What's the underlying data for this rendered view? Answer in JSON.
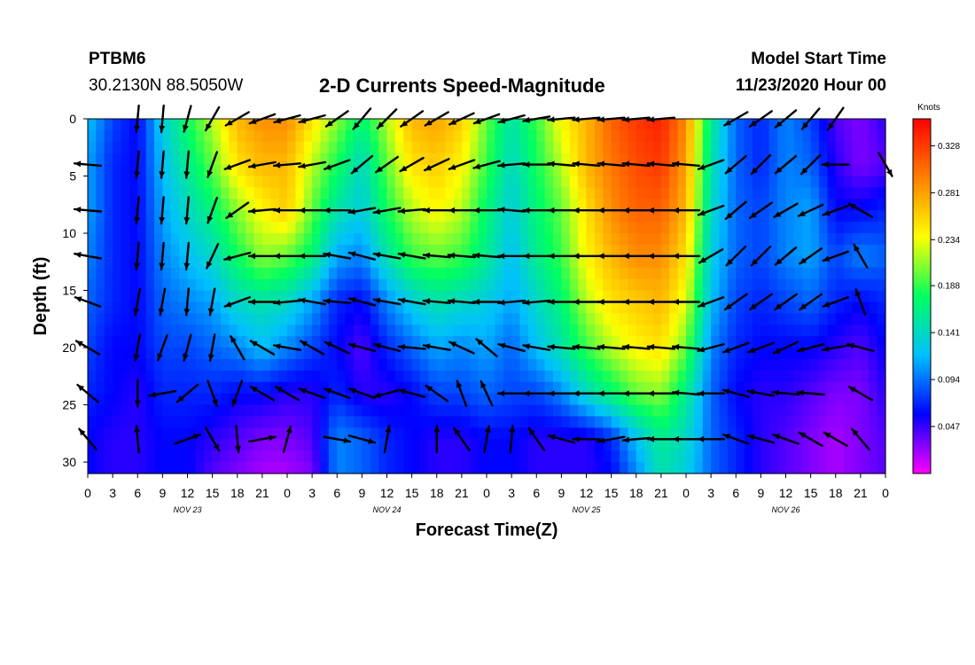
{
  "header": {
    "station": "PTBM6",
    "coords": "30.2130N 88.5050W",
    "title": "2-D Currents Speed-Magnitude",
    "model_start_label": "Model Start Time",
    "model_start_value": "11/23/2020 Hour 00"
  },
  "chart_data": {
    "type": "heatmap",
    "title": "2-D Currents Speed-Magnitude",
    "xlabel": "Forecast Time(Z)",
    "ylabel": "Depth (ft)",
    "x_tick_labels": [
      "0",
      "3",
      "6",
      "9",
      "12",
      "15",
      "18",
      "21",
      "0",
      "3",
      "6",
      "9",
      "12",
      "15",
      "18",
      "21",
      "0",
      "3",
      "6",
      "9",
      "12",
      "15",
      "18",
      "21",
      "0",
      "3",
      "6",
      "9",
      "12",
      "15",
      "18",
      "21",
      "0"
    ],
    "x_range_hours": [
      0,
      96
    ],
    "date_labels": [
      {
        "hour": 12,
        "text": "NOV 23"
      },
      {
        "hour": 36,
        "text": "NOV 24"
      },
      {
        "hour": 60,
        "text": "NOV 25"
      },
      {
        "hour": 84,
        "text": "NOV 26"
      }
    ],
    "y_ticks": [
      0,
      5,
      10,
      15,
      20,
      25,
      30
    ],
    "ylim": [
      31,
      0
    ],
    "colorbar": {
      "unit": "Knots",
      "ticks": [
        0.047,
        0.094,
        0.141,
        0.188,
        0.234,
        0.281,
        0.328
      ],
      "range": [
        0.0,
        0.355
      ],
      "colors": [
        "#ff00ff",
        "#0000ff",
        "#00c0ff",
        "#00ff60",
        "#ffff00",
        "#ff8000",
        "#ff0000"
      ]
    },
    "speed_grid_note": "rows = depth levels (ft), cols = forecast hours; values in knots",
    "depths": [
      0,
      4,
      8,
      12,
      16,
      20,
      24,
      28,
      31
    ],
    "hours": [
      0,
      3,
      6,
      9,
      12,
      15,
      18,
      21,
      24,
      27,
      30,
      33,
      36,
      39,
      42,
      45,
      48,
      51,
      54,
      57,
      60,
      63,
      66,
      69,
      72,
      75,
      78,
      81,
      84,
      87,
      90,
      93,
      96
    ],
    "speed": [
      [
        0.12,
        0.08,
        0.06,
        0.13,
        0.18,
        0.22,
        0.27,
        0.29,
        0.29,
        0.25,
        0.21,
        0.17,
        0.22,
        0.27,
        0.28,
        0.26,
        0.2,
        0.15,
        0.19,
        0.24,
        0.27,
        0.31,
        0.33,
        0.34,
        0.29,
        0.16,
        0.09,
        0.07,
        0.1,
        0.08,
        0.04,
        0.03,
        0.05
      ],
      [
        0.11,
        0.07,
        0.06,
        0.12,
        0.16,
        0.2,
        0.25,
        0.27,
        0.27,
        0.22,
        0.18,
        0.14,
        0.2,
        0.25,
        0.26,
        0.24,
        0.19,
        0.14,
        0.18,
        0.22,
        0.27,
        0.3,
        0.32,
        0.33,
        0.28,
        0.15,
        0.09,
        0.07,
        0.1,
        0.09,
        0.05,
        0.03,
        0.04
      ],
      [
        0.11,
        0.07,
        0.06,
        0.11,
        0.14,
        0.17,
        0.21,
        0.24,
        0.26,
        0.2,
        0.15,
        0.13,
        0.18,
        0.22,
        0.24,
        0.22,
        0.17,
        0.13,
        0.17,
        0.2,
        0.25,
        0.29,
        0.31,
        0.31,
        0.27,
        0.14,
        0.09,
        0.08,
        0.1,
        0.11,
        0.06,
        0.06,
        0.07
      ],
      [
        0.1,
        0.07,
        0.06,
        0.1,
        0.12,
        0.14,
        0.18,
        0.21,
        0.2,
        0.17,
        0.11,
        0.1,
        0.15,
        0.19,
        0.2,
        0.19,
        0.16,
        0.12,
        0.16,
        0.19,
        0.24,
        0.27,
        0.29,
        0.29,
        0.25,
        0.13,
        0.09,
        0.08,
        0.1,
        0.11,
        0.08,
        0.1,
        0.09
      ],
      [
        0.09,
        0.07,
        0.06,
        0.09,
        0.1,
        0.11,
        0.14,
        0.15,
        0.14,
        0.11,
        0.07,
        0.06,
        0.1,
        0.13,
        0.15,
        0.14,
        0.13,
        0.11,
        0.14,
        0.17,
        0.22,
        0.25,
        0.26,
        0.27,
        0.23,
        0.12,
        0.08,
        0.07,
        0.08,
        0.09,
        0.07,
        0.06,
        0.07
      ],
      [
        0.08,
        0.06,
        0.06,
        0.08,
        0.08,
        0.09,
        0.1,
        0.12,
        0.1,
        0.08,
        0.06,
        0.04,
        0.07,
        0.09,
        0.11,
        0.1,
        0.11,
        0.09,
        0.12,
        0.15,
        0.19,
        0.22,
        0.24,
        0.25,
        0.2,
        0.1,
        0.07,
        0.06,
        0.06,
        0.06,
        0.05,
        0.04,
        0.06
      ],
      [
        0.07,
        0.06,
        0.05,
        0.07,
        0.07,
        0.07,
        0.06,
        0.06,
        0.05,
        0.05,
        0.07,
        0.05,
        0.05,
        0.06,
        0.08,
        0.08,
        0.09,
        0.08,
        0.08,
        0.1,
        0.14,
        0.17,
        0.2,
        0.21,
        0.16,
        0.09,
        0.06,
        0.05,
        0.05,
        0.04,
        0.03,
        0.03,
        0.05
      ],
      [
        0.06,
        0.05,
        0.05,
        0.06,
        0.06,
        0.05,
        0.04,
        0.03,
        0.03,
        0.04,
        0.1,
        0.09,
        0.07,
        0.06,
        0.05,
        0.05,
        0.06,
        0.06,
        0.05,
        0.05,
        0.05,
        0.07,
        0.12,
        0.16,
        0.14,
        0.09,
        0.07,
        0.05,
        0.04,
        0.03,
        0.02,
        0.03,
        0.04
      ],
      [
        0.06,
        0.05,
        0.05,
        0.06,
        0.06,
        0.04,
        0.03,
        0.02,
        0.02,
        0.03,
        0.1,
        0.09,
        0.07,
        0.06,
        0.05,
        0.05,
        0.06,
        0.06,
        0.05,
        0.05,
        0.05,
        0.06,
        0.1,
        0.15,
        0.13,
        0.09,
        0.07,
        0.05,
        0.04,
        0.03,
        0.02,
        0.03,
        0.04
      ]
    ],
    "vector_note": "arrows show current direction; angle in degrees (0 = toward east, 90 = toward north) at depths 0,4,8,12,16,20,24,28 ft every 3 h",
    "vector_depths": [
      0,
      4,
      8,
      12,
      16,
      20,
      24,
      28
    ],
    "vector_angles": [
      [
        null,
        null,
        265,
        265,
        255,
        240,
        210,
        200,
        195,
        195,
        215,
        230,
        225,
        215,
        210,
        205,
        200,
        195,
        190,
        185,
        185,
        185,
        185,
        185,
        null,
        null,
        210,
        215,
        220,
        230,
        235,
        null,
        null
      ],
      [
        175,
        null,
        265,
        265,
        265,
        250,
        200,
        190,
        185,
        190,
        200,
        220,
        215,
        210,
        205,
        200,
        195,
        185,
        180,
        175,
        175,
        175,
        175,
        175,
        175,
        200,
        220,
        225,
        220,
        225,
        180,
        null,
        300
      ],
      [
        175,
        null,
        265,
        265,
        265,
        250,
        215,
        185,
        180,
        180,
        180,
        190,
        190,
        185,
        180,
        180,
        180,
        175,
        180,
        180,
        180,
        180,
        180,
        180,
        180,
        200,
        220,
        215,
        210,
        205,
        200,
        150,
        null
      ],
      [
        170,
        null,
        265,
        265,
        265,
        245,
        195,
        180,
        180,
        180,
        170,
        165,
        170,
        170,
        175,
        175,
        175,
        180,
        180,
        180,
        180,
        180,
        180,
        180,
        180,
        210,
        225,
        225,
        220,
        215,
        200,
        120,
        null
      ],
      [
        160,
        null,
        260,
        260,
        265,
        260,
        200,
        180,
        185,
        170,
        175,
        165,
        170,
        170,
        175,
        175,
        180,
        185,
        185,
        180,
        180,
        180,
        180,
        180,
        180,
        200,
        215,
        215,
        215,
        215,
        200,
        110,
        null
      ],
      [
        150,
        null,
        260,
        250,
        255,
        260,
        120,
        150,
        170,
        150,
        155,
        165,
        165,
        175,
        170,
        155,
        140,
        165,
        170,
        175,
        175,
        175,
        175,
        175,
        175,
        195,
        200,
        200,
        205,
        195,
        190,
        165,
        null
      ],
      [
        140,
        null,
        270,
        190,
        220,
        290,
        250,
        150,
        150,
        160,
        160,
        160,
        195,
        165,
        145,
        110,
        115,
        180,
        180,
        180,
        180,
        180,
        180,
        180,
        175,
        180,
        165,
        170,
        175,
        175,
        null,
        150,
        null
      ],
      [
        130,
        null,
        95,
        null,
        20,
        300,
        275,
        10,
        75,
        null,
        350,
        345,
        80,
        null,
        90,
        125,
        80,
        85,
        125,
        165,
        180,
        190,
        185,
        180,
        180,
        180,
        160,
        165,
        160,
        150,
        150,
        130,
        null
      ]
    ]
  }
}
